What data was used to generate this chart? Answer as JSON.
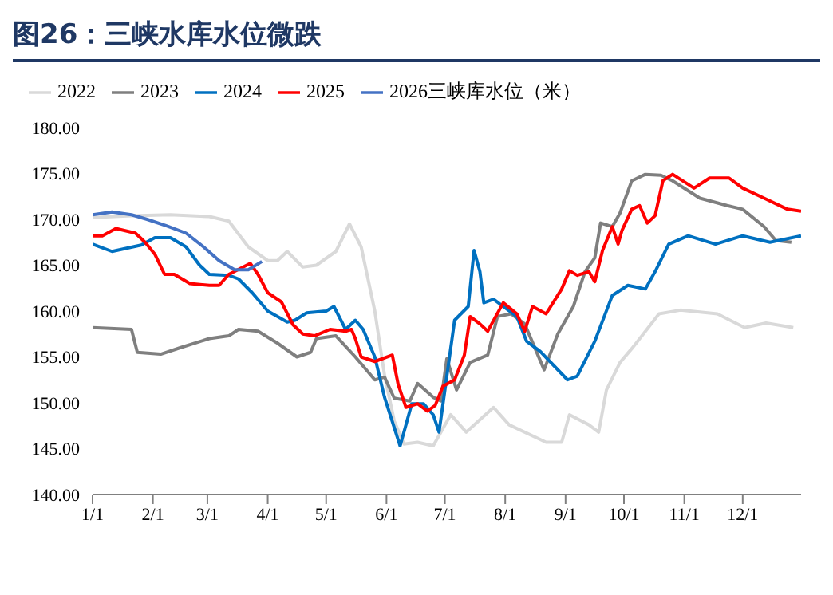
{
  "chart_data": {
    "type": "line",
    "title": "图26：三峡水库水位微跌",
    "xlim": [
      "--01-01",
      "--12-31"
    ],
    "xticks": [
      {
        "value": "--01-01",
        "label": "1/1"
      },
      {
        "value": "--02-01",
        "label": "2/1"
      },
      {
        "value": "--03-01",
        "label": "3/1"
      },
      {
        "value": "--04-01",
        "label": "4/1"
      },
      {
        "value": "--05-01",
        "label": "5/1"
      },
      {
        "value": "--06-01",
        "label": "6/1"
      },
      {
        "value": "--07-01",
        "label": "7/1"
      },
      {
        "value": "--08-01",
        "label": "8/1"
      },
      {
        "value": "--09-01",
        "label": "9/1"
      },
      {
        "value": "--10-01",
        "label": "10/1"
      },
      {
        "value": "--11-01",
        "label": "11/1"
      },
      {
        "value": "--12-01",
        "label": "12/1"
      }
    ],
    "ylim": [
      140,
      180
    ],
    "yticks": [
      {
        "value": 140,
        "label": "140.00"
      },
      {
        "value": 145,
        "label": "145.00"
      },
      {
        "value": 150,
        "label": "150.00"
      },
      {
        "value": 155,
        "label": "155.00"
      },
      {
        "value": 160,
        "label": "160.00"
      },
      {
        "value": 165,
        "label": "165.00"
      },
      {
        "value": 170,
        "label": "170.00"
      },
      {
        "value": 175,
        "label": "175.00"
      },
      {
        "value": 180,
        "label": "180.00"
      }
    ],
    "grid": false,
    "legend": "top",
    "marker": "none",
    "line_style": "solid",
    "series": [
      {
        "name": "2022",
        "color": "#d9d9d9",
        "x": [
          "--01-01",
          "--01-21",
          "--02-10",
          "--03-02",
          "--03-12",
          "--03-22",
          "--04-01",
          "--04-06",
          "--04-11",
          "--04-19",
          "--04-26",
          "--05-06",
          "--05-13",
          "--05-19",
          "--05-26",
          "--05-31",
          "--06-05",
          "--06-10",
          "--06-17",
          "--06-25",
          "--07-04",
          "--07-12",
          "--07-26",
          "--08-03",
          "--08-22",
          "--08-30",
          "--09-03",
          "--09-13",
          "--09-18",
          "--09-22",
          "--09-29",
          "--10-05",
          "--10-08",
          "--10-19",
          "--10-30",
          "--11-18",
          "--12-02",
          "--12-13",
          "--12-27"
        ],
        "values": [
          170.2,
          170.4,
          170.5,
          170.3,
          169.8,
          167,
          165.5,
          165.5,
          166.5,
          164.8,
          165,
          166.5,
          169.5,
          167,
          160,
          153,
          148,
          145.5,
          145.7,
          145.3,
          148.7,
          146.8,
          149.5,
          147.6,
          145.7,
          145.7,
          148.7,
          147.6,
          146.8,
          151.4,
          154.4,
          155.9,
          156.7,
          159.7,
          160.1,
          159.7,
          158.2,
          158.7,
          158.2
        ]
      },
      {
        "name": "2023",
        "color": "#7f7f7f",
        "x": [
          "--01-01",
          "--01-21",
          "--01-24",
          "--02-05",
          "--02-15",
          "--03-02",
          "--03-12",
          "--03-17",
          "--03-27",
          "--04-06",
          "--04-16",
          "--04-23",
          "--04-26",
          "--05-06",
          "--05-16",
          "--05-26",
          "--05-31",
          "--06-05",
          "--06-13",
          "--06-17",
          "--06-25",
          "--06-29",
          "--07-02",
          "--07-07",
          "--07-14",
          "--07-23",
          "--07-28",
          "--08-04",
          "--08-11",
          "--08-21",
          "--08-28",
          "--09-05",
          "--09-11",
          "--09-16",
          "--09-19",
          "--09-25",
          "--09-29",
          "--10-05",
          "--10-12",
          "--10-20",
          "--10-26",
          "--11-09",
          "--11-23",
          "--12-01",
          "--12-12",
          "--12-18",
          "--12-26"
        ],
        "values": [
          158.2,
          158,
          155.5,
          155.3,
          156,
          157,
          157.3,
          158,
          157.8,
          156.5,
          155,
          155.5,
          157,
          157.3,
          155,
          152.5,
          152.8,
          150.5,
          150.2,
          152.1,
          150.6,
          150.2,
          154.8,
          151.4,
          154.4,
          155.2,
          159.4,
          159.7,
          158.6,
          153.6,
          157.5,
          160.5,
          164.3,
          165.8,
          169.6,
          169.2,
          170.7,
          174.2,
          174.9,
          174.8,
          174.2,
          172.3,
          171.5,
          171.1,
          169.2,
          167.7,
          167.5
        ]
      },
      {
        "name": "2024",
        "color": "#0070c0",
        "x": [
          "--01-01",
          "--01-11",
          "--01-26",
          "--02-02",
          "--02-10",
          "--02-18",
          "--02-25",
          "--03-02",
          "--03-12",
          "--03-17",
          "--03-24",
          "--04-01",
          "--04-11",
          "--04-15",
          "--04-21",
          "--05-01",
          "--05-05",
          "--05-11",
          "--05-16",
          "--05-20",
          "--05-26",
          "--05-31",
          "--06-08",
          "--06-14",
          "--06-20",
          "--06-25",
          "--06-28",
          "--07-02",
          "--07-06",
          "--07-13",
          "--07-16",
          "--07-19",
          "--07-21",
          "--07-26",
          "--07-31",
          "--08-07",
          "--08-12",
          "--08-19",
          "--09-02",
          "--09-07",
          "--09-16",
          "--09-25",
          "--10-03",
          "--10-12",
          "--10-17",
          "--10-24",
          "--11-03",
          "--11-17",
          "--12-01",
          "--12-15",
          "--12-31"
        ],
        "values": [
          167.3,
          166.5,
          167.2,
          168,
          168,
          167,
          165,
          164,
          163.9,
          163.5,
          162,
          160,
          158.8,
          159,
          159.8,
          160,
          160.5,
          158,
          159,
          158,
          155,
          150.6,
          145.3,
          149.9,
          149.9,
          148.7,
          146.8,
          152.9,
          159,
          160.5,
          166.6,
          164.3,
          160.9,
          161.3,
          160.5,
          159.4,
          156.7,
          155.6,
          152.5,
          152.9,
          156.7,
          161.7,
          162.8,
          162.4,
          164.3,
          167.3,
          168.2,
          167.3,
          168.2,
          167.5,
          168.2
        ]
      },
      {
        "name": "2025",
        "color": "#ff0000",
        "x": [
          "--01-01",
          "--01-06",
          "--01-13",
          "--01-23",
          "--01-28",
          "--02-02",
          "--02-07",
          "--02-12",
          "--02-20",
          "--03-02",
          "--03-07",
          "--03-12",
          "--03-23",
          "--03-27",
          "--04-01",
          "--04-08",
          "--04-14",
          "--04-19",
          "--04-25",
          "--05-03",
          "--05-11",
          "--05-14",
          "--05-16",
          "--05-19",
          "--05-26",
          "--06-04",
          "--06-07",
          "--06-11",
          "--06-17",
          "--06-22",
          "--06-26",
          "--06-30",
          "--07-06",
          "--07-11",
          "--07-14",
          "--07-19",
          "--07-23",
          "--07-31",
          "--08-07",
          "--08-11",
          "--08-15",
          "--08-22",
          "--08-30",
          "--09-03",
          "--09-07",
          "--09-13",
          "--09-16",
          "--09-20",
          "--09-25",
          "--09-28",
          "--09-30",
          "--10-05",
          "--10-09",
          "--10-13",
          "--10-17",
          "--10-21",
          "--10-26",
          "--11-06",
          "--11-14",
          "--11-24",
          "--12-01",
          "--12-12",
          "--12-24",
          "--12-31"
        ],
        "values": [
          168.2,
          168.2,
          169,
          168.5,
          167.5,
          166.2,
          164,
          164,
          163,
          162.8,
          162.8,
          164,
          165.2,
          164,
          162,
          161,
          158.5,
          157.5,
          157.3,
          158,
          157.8,
          158,
          157,
          155,
          154.5,
          155.2,
          152,
          149.5,
          149.9,
          149.1,
          149.7,
          151.8,
          152.5,
          155.2,
          159.4,
          158.6,
          157.8,
          160.9,
          159.7,
          157.8,
          160.5,
          159.7,
          162.4,
          164.4,
          163.9,
          164.3,
          163.2,
          166.6,
          169.2,
          167.3,
          168.8,
          171.1,
          171.5,
          169.6,
          170.4,
          174.2,
          174.9,
          173.4,
          174.5,
          174.5,
          173.4,
          172.3,
          171.1,
          170.9
        ]
      },
      {
        "name": "2026三峡库水位（米）",
        "color": "#4472c4",
        "x": [
          "--01-01",
          "--01-11",
          "--01-21",
          "--01-29",
          "--02-08",
          "--02-18",
          "--02-27",
          "--03-07",
          "--03-15",
          "--03-22",
          "--03-29"
        ],
        "values": [
          170.5,
          170.8,
          170.5,
          170,
          169.3,
          168.5,
          167,
          165.5,
          164.5,
          164.5,
          165.4
        ]
      }
    ]
  }
}
